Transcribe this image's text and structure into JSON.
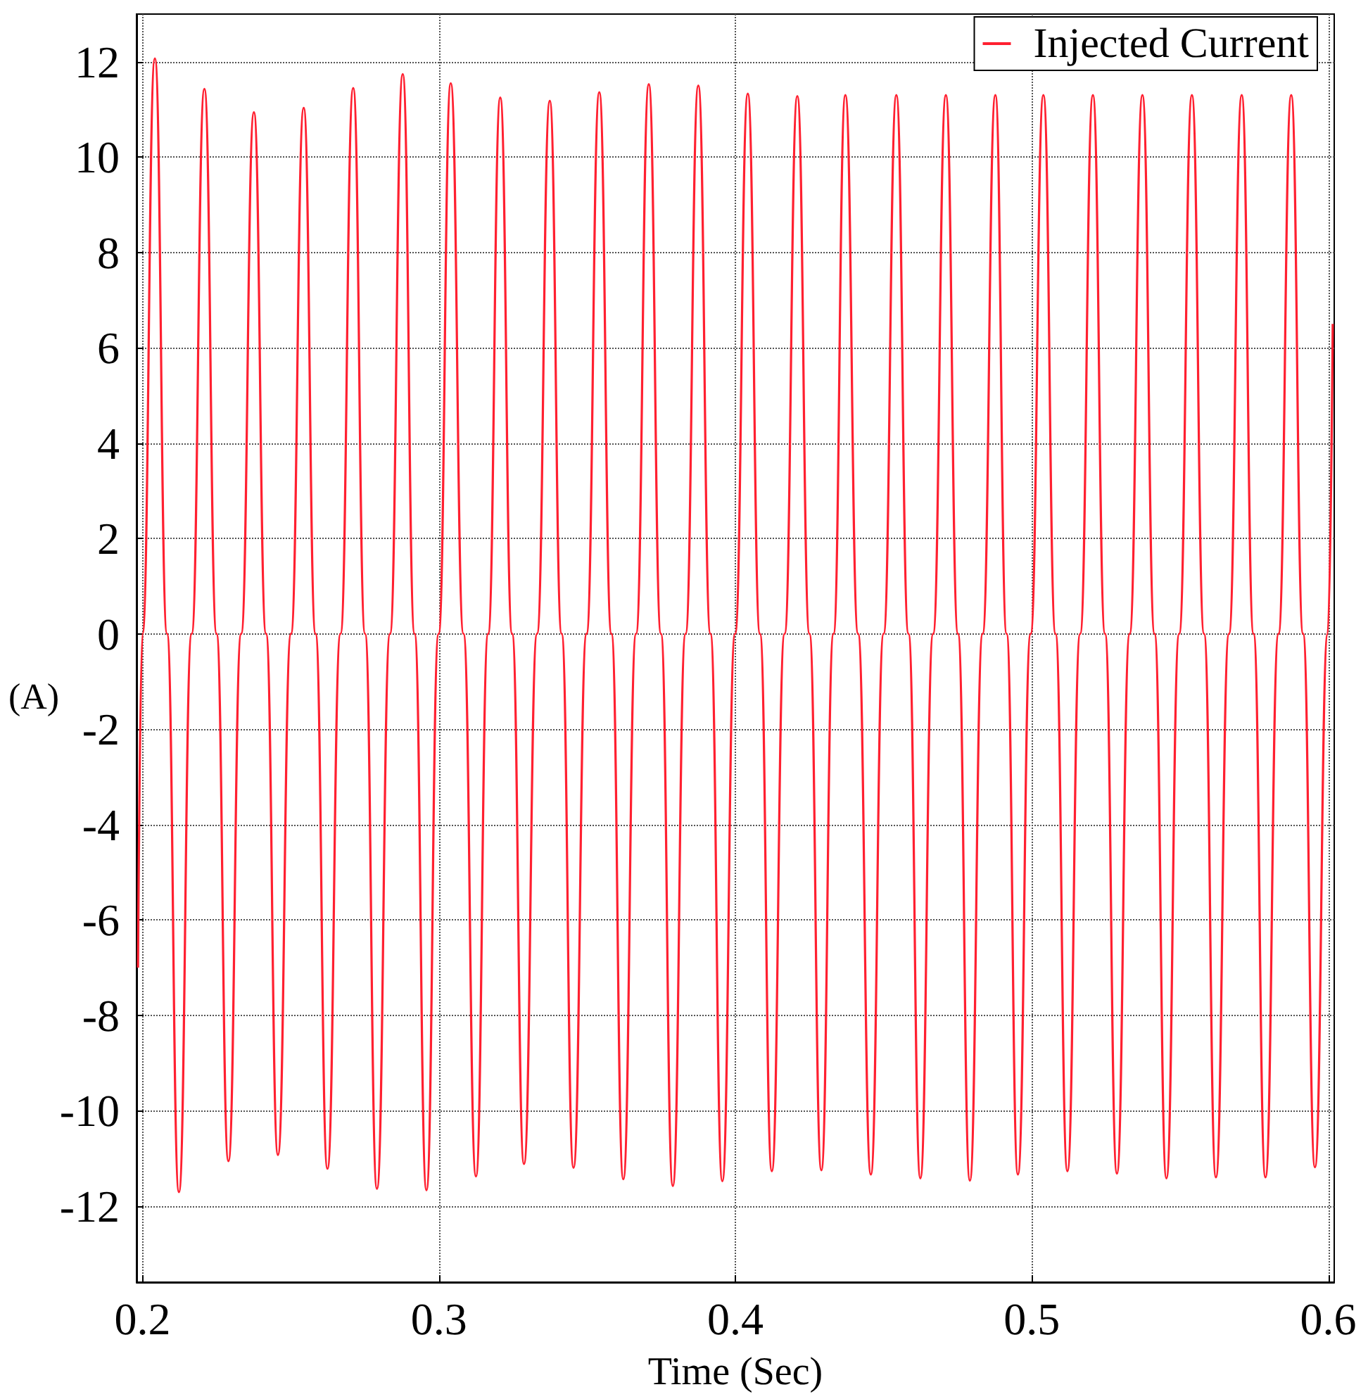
{
  "chart_data": {
    "type": "line",
    "xlabel": "Time (Sec)",
    "ylabel": "(A)",
    "xlim": [
      0.198,
      0.602
    ],
    "xticks": [
      0.2,
      0.3,
      0.4,
      0.5,
      0.6
    ],
    "ylim": [
      -13.6,
      13
    ],
    "yticks": [
      -12,
      -10,
      -8,
      -6,
      -4,
      -2,
      0,
      2,
      4,
      6,
      8,
      10,
      12
    ],
    "grid": true,
    "legend": "top right",
    "marker": "none",
    "line_style": "solid",
    "series": [
      {
        "name": "Injected Current",
        "color": "#ff2030",
        "x": [
          0.1985,
          0.2,
          0.2042,
          0.2083,
          0.2123,
          0.2166,
          0.2209,
          0.225,
          0.229,
          0.2333,
          0.2376,
          0.2417,
          0.2457,
          0.2501,
          0.2544,
          0.2584,
          0.2624,
          0.2668,
          0.2711,
          0.2751,
          0.2791,
          0.2835,
          0.2878,
          0.2918,
          0.2958,
          0.2999,
          0.304,
          0.3083,
          0.3125,
          0.3166,
          0.3207,
          0.3247,
          0.3287,
          0.3331,
          0.3374,
          0.3414,
          0.3454,
          0.3498,
          0.3541,
          0.3582,
          0.3622,
          0.3665,
          0.3708,
          0.3749,
          0.3789,
          0.3832,
          0.3875,
          0.3916,
          0.3956,
          0.3999,
          0.4042,
          0.4083,
          0.4123,
          0.4166,
          0.4209,
          0.425,
          0.429,
          0.4331,
          0.4371,
          0.4414,
          0.4457,
          0.45,
          0.4543,
          0.4584,
          0.4624,
          0.4667,
          0.471,
          0.4751,
          0.4791,
          0.4834,
          0.4877,
          0.4915,
          0.4953,
          0.4996,
          0.5039,
          0.508,
          0.512,
          0.5163,
          0.5206,
          0.5247,
          0.5287,
          0.533,
          0.5373,
          0.5414,
          0.5454,
          0.5497,
          0.554,
          0.5581,
          0.5621,
          0.5665,
          0.5708,
          0.5748,
          0.5788,
          0.5832,
          0.5875,
          0.5915,
          0.5955,
          0.5998,
          0.6015
        ],
        "values": [
          -7,
          0,
          12.07,
          0,
          -11.71,
          0,
          11.43,
          0,
          -11.06,
          0,
          10.94,
          0,
          -10.93,
          0,
          11.03,
          0,
          -11.22,
          0,
          11.45,
          0,
          -11.64,
          0,
          11.74,
          0,
          -11.67,
          0,
          11.55,
          0,
          -11.38,
          0,
          11.25,
          0,
          -11.12,
          0,
          11.18,
          0,
          -11.2,
          0,
          11.36,
          0,
          -11.44,
          0,
          11.53,
          0,
          -11.58,
          0,
          11.5,
          0,
          -11.48,
          0,
          11.33,
          0,
          -11.27,
          0,
          11.28,
          0,
          -11.25,
          0,
          11.3,
          0,
          -11.34,
          0,
          11.3,
          0,
          -11.42,
          0,
          11.3,
          0,
          -11.47,
          0,
          11.3,
          0,
          -11.34,
          0,
          11.3,
          0,
          -11.27,
          0,
          11.3,
          0,
          -11.32,
          0,
          11.3,
          0,
          -11.42,
          0,
          11.3,
          0,
          -11.4,
          0,
          11.3,
          0,
          -11.4,
          0,
          11.3,
          0,
          -11.19,
          0,
          6.5
        ]
      }
    ]
  }
}
